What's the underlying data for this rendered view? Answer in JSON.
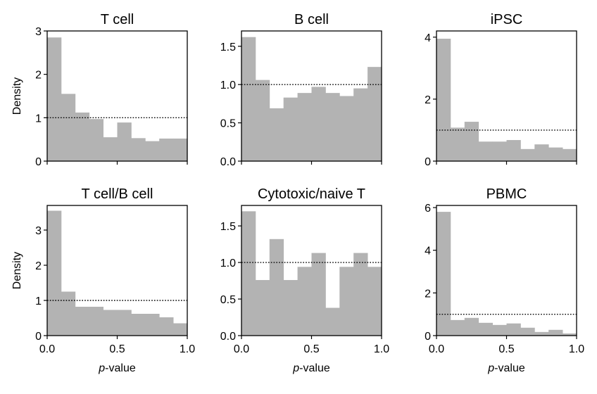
{
  "figure": {
    "bar_color": "#b3b3b3",
    "reference_line": {
      "y": 1.0,
      "style": "dotted",
      "color": "#000000"
    }
  },
  "chart_data": [
    {
      "type": "bar",
      "title": "T cell",
      "xlabel": "",
      "ylabel": "Density",
      "xlim": [
        0,
        1
      ],
      "ylim": [
        0,
        3
      ],
      "yticks": [
        "0",
        "1",
        "2",
        "3"
      ],
      "xticks": [],
      "bin_edges": [
        0,
        0.1,
        0.2,
        0.3,
        0.4,
        0.5,
        0.6,
        0.7,
        0.8,
        0.9,
        1.0
      ],
      "values": [
        2.85,
        1.55,
        1.12,
        0.97,
        0.55,
        0.89,
        0.53,
        0.46,
        0.52,
        0.52
      ]
    },
    {
      "type": "bar",
      "title": "B cell",
      "xlabel": "",
      "ylabel": "",
      "xlim": [
        0,
        1
      ],
      "ylim": [
        0,
        1.7
      ],
      "yticks": [
        "0.0",
        "0.5",
        "1.0",
        "1.5"
      ],
      "xticks": [],
      "bin_edges": [
        0,
        0.1,
        0.2,
        0.3,
        0.4,
        0.5,
        0.6,
        0.7,
        0.8,
        0.9,
        1.0
      ],
      "values": [
        1.62,
        1.06,
        0.69,
        0.83,
        0.89,
        0.97,
        0.89,
        0.85,
        0.95,
        1.23
      ]
    },
    {
      "type": "bar",
      "title": "iPSC",
      "xlabel": "",
      "ylabel": "",
      "xlim": [
        0,
        1
      ],
      "ylim": [
        0,
        4.2
      ],
      "yticks": [
        "0",
        "2",
        "4"
      ],
      "xticks": [],
      "bin_edges": [
        0,
        0.1,
        0.2,
        0.3,
        0.4,
        0.5,
        0.6,
        0.7,
        0.8,
        0.9,
        1.0
      ],
      "values": [
        3.95,
        1.08,
        1.27,
        0.63,
        0.63,
        0.68,
        0.39,
        0.54,
        0.44,
        0.39
      ]
    },
    {
      "type": "bar",
      "title": "T cell/B cell",
      "xlabel": "",
      "ylabel": "Density",
      "xlim": [
        0,
        1
      ],
      "ylim": [
        0,
        3.7
      ],
      "yticks": [
        "0",
        "1",
        "2",
        "3"
      ],
      "xticks": [
        "0.0",
        "0.5",
        "1.0"
      ],
      "bin_edges": [
        0,
        0.1,
        0.2,
        0.3,
        0.4,
        0.5,
        0.6,
        0.7,
        0.8,
        0.9,
        1.0
      ],
      "values": [
        3.55,
        1.25,
        0.82,
        0.82,
        0.73,
        0.73,
        0.62,
        0.62,
        0.52,
        0.35
      ]
    },
    {
      "type": "bar",
      "title": "Cytotoxic/naive T",
      "xlabel": "",
      "ylabel": "",
      "xlim": [
        0,
        1
      ],
      "ylim": [
        0,
        1.78
      ],
      "yticks": [
        "0.0",
        "0.5",
        "1.0",
        "1.5"
      ],
      "xticks": [
        "0.0",
        "0.5",
        "1.0"
      ],
      "bin_edges": [
        0,
        0.1,
        0.2,
        0.3,
        0.4,
        0.5,
        0.6,
        0.7,
        0.8,
        0.9,
        1.0
      ],
      "values": [
        1.7,
        0.76,
        1.32,
        0.76,
        0.94,
        1.13,
        0.38,
        0.94,
        1.13,
        0.94
      ]
    },
    {
      "type": "bar",
      "title": "PBMC",
      "xlabel": "",
      "ylabel": "",
      "xlim": [
        0,
        1
      ],
      "ylim": [
        0,
        6.1
      ],
      "yticks": [
        "0",
        "2",
        "4",
        "6"
      ],
      "xticks": [
        "0.0",
        "0.5",
        "1.0"
      ],
      "bin_edges": [
        0,
        0.1,
        0.2,
        0.3,
        0.4,
        0.5,
        0.6,
        0.7,
        0.8,
        0.9,
        1.0
      ],
      "values": [
        5.8,
        0.73,
        0.83,
        0.6,
        0.5,
        0.57,
        0.37,
        0.17,
        0.27,
        0.1
      ]
    }
  ],
  "xlabel_parts": {
    "italic": "p",
    "rest": "-value"
  }
}
